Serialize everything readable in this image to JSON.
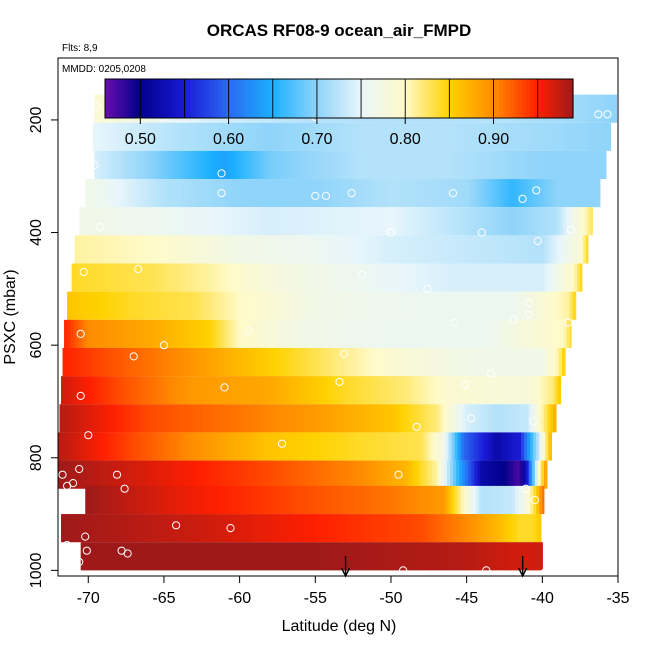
{
  "chart_data": {
    "type": "heatmap",
    "title": "ORCAS RF08-9 ocean_air_FMPD",
    "annotations": {
      "flights": "Flts: 8,9",
      "dates": "MMDD: 0205,0208"
    },
    "xlabel": "Latitude (deg N)",
    "ylabel": "PSXC (mbar)",
    "xlim": [
      -72,
      -35
    ],
    "ylim": [
      1010,
      90
    ],
    "x_ticks": [
      -70,
      -65,
      -60,
      -55,
      -50,
      -45,
      -40,
      -35
    ],
    "y_ticks": [
      200,
      400,
      600,
      800,
      1000
    ],
    "colorbar": {
      "min": 0.46,
      "max": 0.99,
      "ticks": [
        0.5,
        0.6,
        0.7,
        0.8,
        0.9
      ],
      "tick_labels": [
        "0.50",
        "0.60",
        "0.70",
        "0.80",
        "0.90"
      ],
      "divisions": [
        0.46,
        0.5,
        0.55,
        0.6,
        0.65,
        0.7,
        0.75,
        0.8,
        0.85,
        0.9,
        0.95,
        0.99
      ],
      "colors": [
        "#6a0dad",
        "#00008b",
        "#1a1ad6",
        "#2a6af2",
        "#1ab0ff",
        "#8fd4fa",
        "#e8f6fb",
        "#fffac8",
        "#ffd200",
        "#ff8c00",
        "#ff1f00",
        "#9e1a1a"
      ]
    },
    "bands": [
      {
        "p": 180,
        "lat_min": -69.6,
        "lat_max": -35.1,
        "values": [
          [
            -69.6,
            0.79
          ],
          [
            -62,
            0.74
          ],
          [
            -55,
            0.72
          ],
          [
            -48,
            0.72
          ],
          [
            -42,
            0.72
          ],
          [
            -38,
            0.71
          ],
          [
            -35.1,
            0.7
          ]
        ]
      },
      {
        "p": 230,
        "lat_min": -69.7,
        "lat_max": -35.5,
        "values": [
          [
            -69.7,
            0.75
          ],
          [
            -64,
            0.72
          ],
          [
            -58,
            0.7
          ],
          [
            -52,
            0.72
          ],
          [
            -46,
            0.72
          ],
          [
            -40,
            0.71
          ],
          [
            -35.5,
            0.7
          ]
        ]
      },
      {
        "p": 280,
        "lat_min": -69.6,
        "lat_max": -35.8,
        "values": [
          [
            -69.6,
            0.74
          ],
          [
            -66,
            0.7
          ],
          [
            -61,
            0.64
          ],
          [
            -58,
            0.69
          ],
          [
            -52,
            0.72
          ],
          [
            -46,
            0.72
          ],
          [
            -40,
            0.7
          ],
          [
            -35.8,
            0.7
          ]
        ]
      },
      {
        "p": 330,
        "lat_min": -70.2,
        "lat_max": -36.2,
        "values": [
          [
            -70.2,
            0.77
          ],
          [
            -65,
            0.72
          ],
          [
            -60,
            0.7
          ],
          [
            -55,
            0.7
          ],
          [
            -50,
            0.72
          ],
          [
            -45,
            0.71
          ],
          [
            -42,
            0.66
          ],
          [
            -39,
            0.7
          ],
          [
            -36.2,
            0.7
          ]
        ]
      },
      {
        "p": 380,
        "lat_min": -70.6,
        "lat_max": -36.7,
        "values": [
          [
            -70.6,
            0.77
          ],
          [
            -65,
            0.76
          ],
          [
            -58,
            0.74
          ],
          [
            -50,
            0.75
          ],
          [
            -45,
            0.72
          ],
          [
            -42,
            0.7
          ],
          [
            -39,
            0.72
          ],
          [
            -37.2,
            0.8
          ],
          [
            -36.7,
            0.83
          ]
        ]
      },
      {
        "p": 430,
        "lat_min": -70.9,
        "lat_max": -37.0,
        "values": [
          [
            -70.9,
            0.81
          ],
          [
            -66,
            0.8
          ],
          [
            -60,
            0.77
          ],
          [
            -55,
            0.76
          ],
          [
            -50,
            0.74
          ],
          [
            -45,
            0.73
          ],
          [
            -40,
            0.72
          ],
          [
            -37.4,
            0.79
          ],
          [
            -37.0,
            0.85
          ]
        ]
      },
      {
        "p": 480,
        "lat_min": -71.1,
        "lat_max": -37.4,
        "values": [
          [
            -71.1,
            0.84
          ],
          [
            -66,
            0.83
          ],
          [
            -62,
            0.81
          ],
          [
            -58,
            0.78
          ],
          [
            -52,
            0.76
          ],
          [
            -46,
            0.74
          ],
          [
            -40,
            0.74
          ],
          [
            -37.9,
            0.8
          ],
          [
            -37.4,
            0.85
          ]
        ]
      },
      {
        "p": 530,
        "lat_min": -71.4,
        "lat_max": -37.8,
        "values": [
          [
            -71.4,
            0.86
          ],
          [
            -67,
            0.84
          ],
          [
            -63,
            0.83
          ],
          [
            -60,
            0.8
          ],
          [
            -55,
            0.77
          ],
          [
            -48,
            0.76
          ],
          [
            -42,
            0.76
          ],
          [
            -38.3,
            0.81
          ],
          [
            -37.8,
            0.85
          ]
        ]
      },
      {
        "p": 580,
        "lat_min": -71.6,
        "lat_max": -38.1,
        "values": [
          [
            -71.6,
            0.95
          ],
          [
            -70,
            0.9
          ],
          [
            -66,
            0.88
          ],
          [
            -62,
            0.85
          ],
          [
            -60,
            0.8
          ],
          [
            -56,
            0.77
          ],
          [
            -50,
            0.76
          ],
          [
            -44,
            0.76
          ],
          [
            -38.6,
            0.8
          ],
          [
            -38.1,
            0.84
          ]
        ]
      },
      {
        "p": 630,
        "lat_min": -71.7,
        "lat_max": -38.5,
        "values": [
          [
            -71.7,
            0.95
          ],
          [
            -69,
            0.93
          ],
          [
            -64,
            0.9
          ],
          [
            -59,
            0.86
          ],
          [
            -55,
            0.83
          ],
          [
            -50,
            0.79
          ],
          [
            -45,
            0.77
          ],
          [
            -40,
            0.77
          ],
          [
            -38.9,
            0.81
          ],
          [
            -38.5,
            0.86
          ]
        ]
      },
      {
        "p": 680,
        "lat_min": -71.8,
        "lat_max": -38.8,
        "values": [
          [
            -71.8,
            0.97
          ],
          [
            -68,
            0.93
          ],
          [
            -63,
            0.89
          ],
          [
            -58,
            0.88
          ],
          [
            -53,
            0.84
          ],
          [
            -49,
            0.82
          ],
          [
            -46,
            0.79
          ],
          [
            -41,
            0.78
          ],
          [
            -39.3,
            0.82
          ],
          [
            -38.8,
            0.86
          ]
        ]
      },
      {
        "p": 730,
        "lat_min": -71.9,
        "lat_max": -39.1,
        "values": [
          [
            -71.9,
            0.98
          ],
          [
            -66,
            0.93
          ],
          [
            -60,
            0.91
          ],
          [
            -55,
            0.89
          ],
          [
            -50,
            0.86
          ],
          [
            -47,
            0.82
          ],
          [
            -45,
            0.74
          ],
          [
            -43,
            0.72
          ],
          [
            -41,
            0.73
          ],
          [
            -39.6,
            0.84
          ],
          [
            -39.1,
            0.88
          ]
        ]
      },
      {
        "p": 780,
        "lat_min": -72.0,
        "lat_max": -39.4,
        "values": [
          [
            -72.0,
            0.98
          ],
          [
            -67,
            0.93
          ],
          [
            -62,
            0.89
          ],
          [
            -58,
            0.86
          ],
          [
            -52,
            0.84
          ],
          [
            -48,
            0.83
          ],
          [
            -46.5,
            0.77
          ],
          [
            -45.2,
            0.6
          ],
          [
            -43,
            0.52
          ],
          [
            -41.5,
            0.55
          ],
          [
            -40.3,
            0.72
          ],
          [
            -39.4,
            0.88
          ]
        ]
      },
      {
        "p": 830,
        "lat_min": -72.1,
        "lat_max": -39.7,
        "values": [
          [
            -72.1,
            0.99
          ],
          [
            -65,
            0.96
          ],
          [
            -58,
            0.93
          ],
          [
            -52,
            0.9
          ],
          [
            -49,
            0.87
          ],
          [
            -47,
            0.81
          ],
          [
            -45.5,
            0.65
          ],
          [
            -44,
            0.52
          ],
          [
            -42.5,
            0.5
          ],
          [
            -41.5,
            0.47
          ],
          [
            -41,
            0.55
          ],
          [
            -40.2,
            0.8
          ],
          [
            -39.7,
            0.9
          ]
        ]
      },
      {
        "p": 875,
        "lat_min": -70.2,
        "lat_max": -39.9,
        "values": [
          [
            -70.2,
            0.99
          ],
          [
            -64,
            0.96
          ],
          [
            -56,
            0.93
          ],
          [
            -50,
            0.91
          ],
          [
            -46.5,
            0.89
          ],
          [
            -45.5,
            0.82
          ],
          [
            -44,
            0.72
          ],
          [
            -42,
            0.73
          ],
          [
            -41,
            0.78
          ],
          [
            -40.4,
            0.85
          ],
          [
            -39.9,
            0.92
          ]
        ]
      },
      {
        "p": 925,
        "lat_min": -71.8,
        "lat_max": -40.1,
        "values": [
          [
            -71.8,
            0.99
          ],
          [
            -62,
            0.97
          ],
          [
            -55,
            0.95
          ],
          [
            -48,
            0.93
          ],
          [
            -45,
            0.9
          ],
          [
            -43,
            0.87
          ],
          [
            -41.5,
            0.84
          ],
          [
            -40.6,
            0.84
          ],
          [
            -40.1,
            0.86
          ]
        ]
      },
      {
        "p": 975,
        "lat_min": -70.5,
        "lat_max": -40.0,
        "values": [
          [
            -70.5,
            0.99
          ],
          [
            -55,
            0.99
          ],
          [
            -45,
            0.98
          ],
          [
            -42,
            0.97
          ],
          [
            -40.0,
            0.97
          ]
        ]
      }
    ],
    "sample_points": [
      [
        -71.7,
        830
      ],
      [
        -71.4,
        850
      ],
      [
        -71.4,
        955
      ],
      [
        -71.0,
        845
      ],
      [
        -70.6,
        820
      ],
      [
        -70.6,
        985
      ],
      [
        -70.5,
        690
      ],
      [
        -70.5,
        580
      ],
      [
        -70.3,
        470
      ],
      [
        -70.2,
        940
      ],
      [
        -70.1,
        965
      ],
      [
        -70.0,
        760
      ],
      [
        -69.6,
        280
      ],
      [
        -69.5,
        175
      ],
      [
        -69.2,
        390
      ],
      [
        -68.1,
        830
      ],
      [
        -67.8,
        965
      ],
      [
        -67.6,
        855
      ],
      [
        -67.4,
        970
      ],
      [
        -67.0,
        620
      ],
      [
        -66.7,
        465
      ],
      [
        -65.1,
        195
      ],
      [
        -65.0,
        600
      ],
      [
        -64.2,
        920
      ],
      [
        -61.7,
        190
      ],
      [
        -61.2,
        330
      ],
      [
        -61.2,
        295
      ],
      [
        -61.0,
        675
      ],
      [
        -60.6,
        925
      ],
      [
        -59.4,
        575
      ],
      [
        -58.3,
        190
      ],
      [
        -57.2,
        775
      ],
      [
        -55.0,
        195
      ],
      [
        -55.0,
        335
      ],
      [
        -54.3,
        335
      ],
      [
        -53.4,
        665
      ],
      [
        -53.1,
        615
      ],
      [
        -52.6,
        330
      ],
      [
        -51.9,
        475
      ],
      [
        -51.4,
        190
      ],
      [
        -50.0,
        400
      ],
      [
        -49.5,
        830
      ],
      [
        -49.2,
        1000
      ],
      [
        -48.3,
        745
      ],
      [
        -47.6,
        500
      ],
      [
        -45.9,
        330
      ],
      [
        -45.8,
        560
      ],
      [
        -45.1,
        670
      ],
      [
        -44.7,
        730
      ],
      [
        -44.0,
        400
      ],
      [
        -43.7,
        1000
      ],
      [
        -43.4,
        650
      ],
      [
        -41.9,
        555
      ],
      [
        -41.3,
        340
      ],
      [
        -41.1,
        855
      ],
      [
        -40.9,
        545
      ],
      [
        -40.9,
        525
      ],
      [
        -40.4,
        325
      ],
      [
        -40.3,
        415
      ],
      [
        -38.1,
        395
      ],
      [
        -38.3,
        560
      ],
      [
        -36.3,
        190
      ],
      [
        -35.7,
        190
      ],
      [
        -40.6,
        735
      ],
      [
        -40.5,
        875
      ],
      [
        -39.9,
        1005
      ]
    ],
    "arrows": [
      -53.0,
      -41.3
    ]
  }
}
